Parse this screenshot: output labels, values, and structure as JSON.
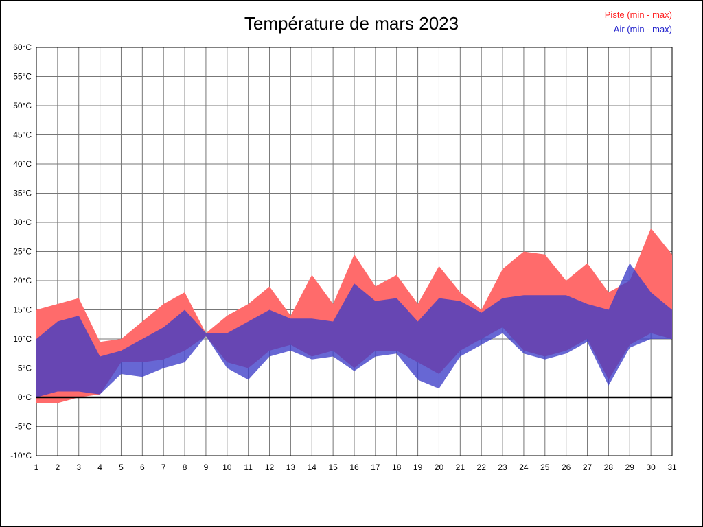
{
  "chart_data": {
    "type": "area",
    "title": "Température de mars 2023",
    "x": [
      1,
      2,
      3,
      4,
      5,
      6,
      7,
      8,
      9,
      10,
      11,
      12,
      13,
      14,
      15,
      16,
      17,
      18,
      19,
      20,
      21,
      22,
      23,
      24,
      25,
      26,
      27,
      28,
      29,
      30,
      31
    ],
    "ylim": [
      -10,
      60
    ],
    "ytick_step": 5,
    "ytick_suffix": "°C",
    "grid": true,
    "grid_color": "#777777",
    "zero_line_color": "#000000",
    "legend_position": "top-right",
    "series": [
      {
        "name": "Piste (min - max)",
        "label_color": "#ff2222",
        "fill": "#ff6b6b",
        "fill_opacity": 1,
        "min": [
          -1,
          -1,
          0,
          0.5,
          6,
          6,
          6.5,
          8,
          10.5,
          6,
          5,
          8,
          9,
          7,
          8,
          5,
          8,
          8,
          6,
          4,
          8,
          10,
          12,
          8,
          7,
          8,
          10,
          3,
          9,
          11,
          10
        ],
        "max": [
          15,
          16,
          17,
          9.5,
          10,
          13,
          16,
          18,
          11,
          14,
          16,
          19,
          14,
          21,
          16,
          24.5,
          19,
          21,
          16,
          22.5,
          18,
          15,
          22,
          25,
          24.5,
          20,
          23,
          18,
          20,
          29,
          24.5
        ]
      },
      {
        "name": "Air (min - max)",
        "label_color": "#2222cc",
        "fill": "#3c3cc8",
        "fill_opacity": 0.78,
        "min": [
          0,
          1,
          1,
          0.5,
          4,
          3.5,
          5,
          6,
          10.5,
          5,
          3,
          7,
          8,
          6.5,
          7,
          4.5,
          7,
          7.5,
          3,
          1.5,
          7,
          9,
          11,
          7.5,
          6.5,
          7.5,
          9.5,
          2,
          8.5,
          10,
          10
        ],
        "max": [
          10,
          13,
          14,
          7,
          8,
          10,
          12,
          15,
          11,
          11,
          13,
          15,
          13.5,
          13.5,
          13,
          19.5,
          16.5,
          17,
          13,
          17,
          16.5,
          14.5,
          17,
          17.5,
          17.5,
          17.5,
          16,
          15,
          23,
          18,
          15
        ]
      }
    ]
  }
}
